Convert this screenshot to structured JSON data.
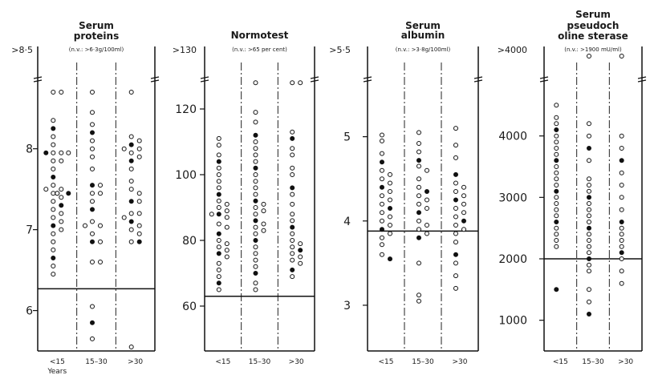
{
  "chart_data": [
    {
      "type": "scatter",
      "title": "Serum proteins",
      "subtitle": "(n.v.: >6·3g/100ml)",
      "top_label": ">8·5",
      "yticks": [
        6,
        7,
        8
      ],
      "ylim": [
        5.55,
        8.7
      ],
      "normal_limit": 6.27,
      "categories": [
        "<15",
        "15–30",
        ">30"
      ],
      "xlabel": "Years",
      "points": [
        {
          "category": "<15",
          "y": [
            8.7,
            8.7,
            8.35,
            8.25,
            8.15,
            8.05,
            7.95,
            7.95,
            7.95,
            7.95,
            7.85,
            7.85,
            7.75,
            7.65,
            7.55,
            7.5,
            7.5,
            7.45,
            7.45,
            7.45,
            7.45,
            7.4,
            7.35,
            7.3,
            7.25,
            7.2,
            7.15,
            7.1,
            7.05,
            7.0,
            6.95,
            6.85,
            6.75,
            6.65,
            6.55,
            6.45
          ]
        },
        {
          "category": "15–30",
          "y": [
            8.7,
            8.45,
            8.3,
            8.2,
            8.1,
            8.0,
            7.9,
            7.75,
            7.55,
            7.55,
            7.45,
            7.45,
            7.35,
            7.25,
            7.1,
            7.05,
            7.05,
            6.95,
            6.85,
            6.85,
            6.6,
            6.6,
            6.05,
            5.85,
            5.65
          ]
        },
        {
          "category": ">30",
          "y": [
            8.7,
            8.15,
            8.1,
            8.05,
            8.0,
            8.0,
            7.95,
            7.9,
            7.85,
            7.75,
            7.6,
            7.5,
            7.45,
            7.35,
            7.35,
            7.2,
            7.2,
            7.15,
            7.1,
            7.05,
            7.0,
            6.95,
            6.85,
            6.85,
            5.55
          ]
        }
      ]
    },
    {
      "type": "scatter",
      "title": "Normotest",
      "subtitle": "(n.v.: >65 per cent)",
      "top_label": ">130",
      "yticks": [
        60,
        80,
        100,
        120
      ],
      "ylim": [
        50,
        130
      ],
      "normal_limit": 63,
      "categories": [
        "<15",
        "15–30",
        ">30"
      ],
      "points": [
        {
          "category": "<15",
          "y": [
            111,
            109,
            106,
            104,
            102,
            100,
            98,
            96,
            94,
            92,
            91,
            90,
            89,
            88,
            88,
            87,
            85,
            84,
            82,
            80,
            79,
            78,
            77,
            76,
            75,
            73,
            71,
            69,
            67,
            65
          ]
        },
        {
          "category": "15–30",
          "y": [
            128,
            119,
            116,
            112,
            110,
            108,
            106,
            104,
            102,
            100,
            98,
            96,
            94,
            92,
            91,
            90,
            89,
            88,
            86,
            85,
            84,
            83,
            82,
            80,
            78,
            76,
            74,
            72,
            70,
            67,
            65
          ]
        },
        {
          "category": ">30",
          "y": [
            128,
            128,
            113,
            111,
            108,
            106,
            102,
            100,
            96,
            94,
            91,
            88,
            86,
            84,
            82,
            80,
            79,
            78,
            77,
            76,
            75,
            74,
            73,
            71,
            69
          ]
        }
      ]
    },
    {
      "type": "scatter",
      "title": "Serum albumin",
      "subtitle": "(n.v.: >3·8g/100ml)",
      "top_label": ">5·5",
      "yticks": [
        3,
        4,
        5
      ],
      "ylim": [
        2.6,
        5.7
      ],
      "normal_limit": 3.88,
      "categories": [
        "<15",
        "15–30",
        ">30"
      ],
      "points": [
        {
          "category": "<15",
          "y": [
            5.02,
            4.95,
            4.8,
            4.7,
            4.6,
            4.55,
            4.5,
            4.45,
            4.4,
            4.35,
            4.3,
            4.25,
            4.2,
            4.15,
            4.1,
            4.05,
            4.0,
            3.95,
            3.9,
            3.85,
            3.8,
            3.72,
            3.6,
            3.55
          ]
        },
        {
          "category": "15–30",
          "y": [
            5.05,
            4.92,
            4.82,
            4.72,
            4.65,
            4.6,
            4.5,
            4.4,
            4.35,
            4.3,
            4.25,
            4.2,
            4.15,
            4.1,
            4.0,
            3.95,
            3.9,
            3.85,
            3.8,
            3.5,
            3.12,
            3.05
          ]
        },
        {
          "category": ">30",
          "y": [
            5.1,
            4.9,
            4.75,
            4.55,
            4.45,
            4.4,
            4.35,
            4.3,
            4.25,
            4.2,
            4.15,
            4.1,
            4.05,
            4.0,
            3.95,
            3.9,
            3.85,
            3.75,
            3.6,
            3.5,
            3.35,
            3.2
          ]
        }
      ]
    },
    {
      "type": "scatter",
      "title": "Serum pseudocholine sterase",
      "subtitle": "(n.v.: >1900 mU/ml)",
      "top_label": ">4000",
      "yticks": [
        1000,
        2000,
        3000,
        4000
      ],
      "ylim": [
        500,
        5300
      ],
      "normal_limit": 2000,
      "categories": [
        "<15",
        "15–30",
        ">30"
      ],
      "points": [
        {
          "category": "<15",
          "y": [
            4500,
            4300,
            4200,
            4100,
            4000,
            3900,
            3800,
            3700,
            3600,
            3500,
            3400,
            3300,
            3200,
            3100,
            3000,
            2900,
            2800,
            2700,
            2600,
            2500,
            2400,
            2300,
            2200,
            1500
          ]
        },
        {
          "category": "15–30",
          "y": [
            5300,
            4200,
            4000,
            3800,
            3600,
            3300,
            3200,
            3100,
            3000,
            2900,
            2800,
            2700,
            2600,
            2500,
            2400,
            2300,
            2200,
            2100,
            2000,
            1900,
            1800,
            1500,
            1300,
            1100
          ]
        },
        {
          "category": ">30",
          "y": [
            5300,
            4000,
            3800,
            3600,
            3400,
            3200,
            3000,
            2800,
            2600,
            2500,
            2400,
            2300,
            2200,
            2100,
            2000,
            1800,
            1600
          ]
        }
      ]
    }
  ]
}
